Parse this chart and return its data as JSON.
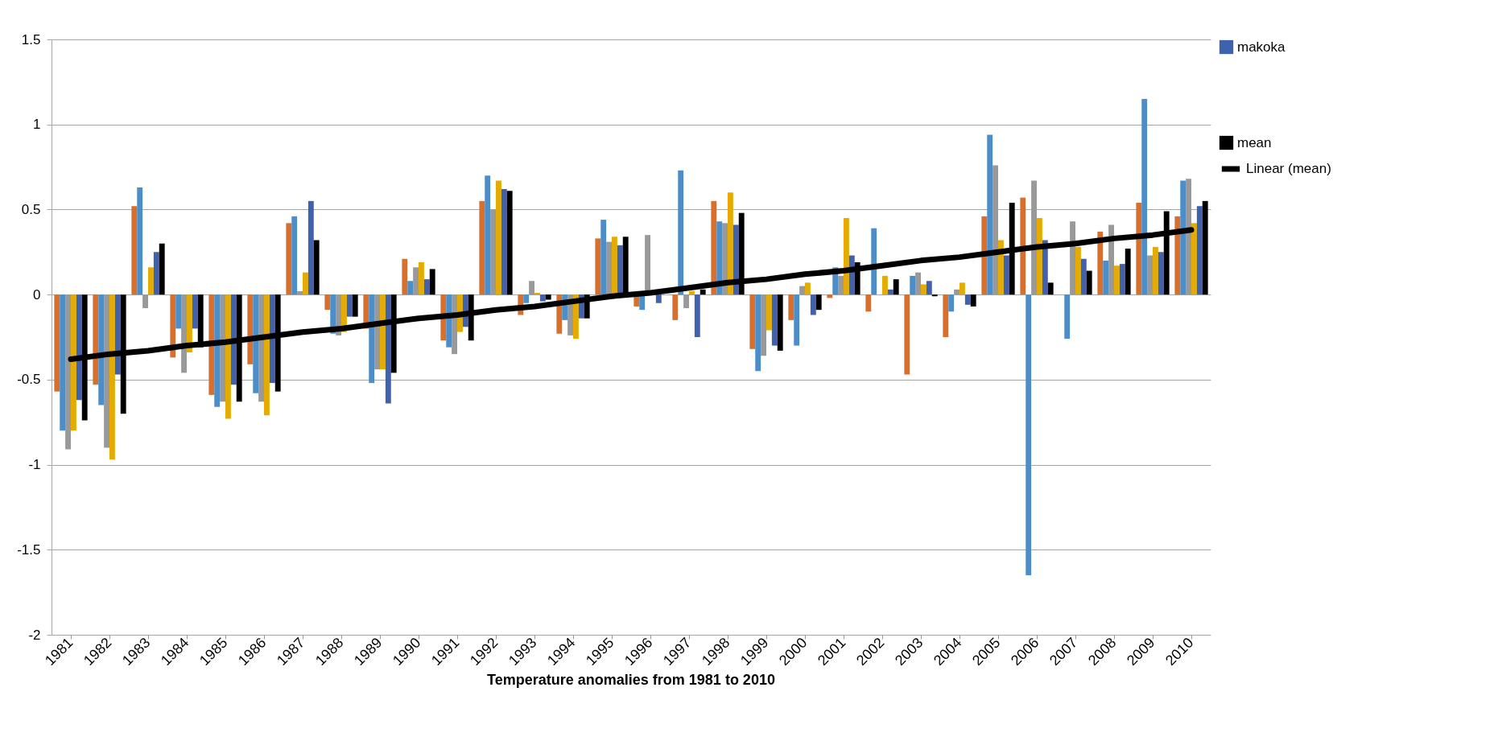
{
  "chart_data": {
    "type": "bar",
    "xlabel": "Temperature anomalies from 1981 to 2010",
    "categories": [
      "1981",
      "1982",
      "1983",
      "1984",
      "1985",
      "1986",
      "1987",
      "1988",
      "1989",
      "1990",
      "1991",
      "1992",
      "1993",
      "1994",
      "1995",
      "1996",
      "1997",
      "1998",
      "1999",
      "2000",
      "2001",
      "2002",
      "2003",
      "2004",
      "2005",
      "2006",
      "2007",
      "2008",
      "2009",
      "2010"
    ],
    "series": [
      {
        "color": "#d8702c",
        "values": [
          -0.57,
          -0.53,
          0.52,
          -0.37,
          -0.59,
          -0.41,
          0.42,
          -0.09,
          -0.2,
          0.21,
          -0.27,
          0.55,
          -0.12,
          -0.23,
          0.33,
          -0.07,
          -0.15,
          0.55,
          -0.32,
          -0.15,
          -0.02,
          -0.1,
          -0.47,
          -0.25,
          0.46,
          0.57,
          null,
          0.37,
          0.54,
          0.46
        ]
      },
      {
        "color": "#4e8ec8",
        "values": [
          -0.8,
          -0.65,
          0.63,
          -0.2,
          -0.66,
          -0.58,
          0.46,
          -0.23,
          -0.52,
          0.08,
          -0.31,
          0.7,
          -0.05,
          -0.15,
          0.44,
          -0.09,
          0.73,
          0.43,
          -0.45,
          -0.3,
          0.16,
          0.39,
          0.11,
          -0.1,
          0.94,
          -1.65,
          -0.26,
          0.2,
          1.15,
          0.67
        ]
      },
      {
        "color": "#999999",
        "values": [
          -0.91,
          -0.9,
          -0.08,
          -0.46,
          -0.63,
          -0.63,
          0.02,
          -0.24,
          -0.44,
          0.16,
          -0.35,
          0.5,
          0.08,
          -0.24,
          0.31,
          0.35,
          -0.08,
          0.42,
          -0.36,
          0.05,
          0.11,
          0.0,
          0.13,
          0.03,
          0.76,
          0.67,
          0.43,
          0.41,
          0.23,
          0.68
        ]
      },
      {
        "color": "#e5ab00",
        "values": [
          -0.8,
          -0.97,
          0.16,
          -0.34,
          -0.73,
          -0.71,
          0.13,
          -0.22,
          -0.44,
          0.19,
          -0.22,
          0.67,
          0.01,
          -0.26,
          0.34,
          0.0,
          0.02,
          0.6,
          -0.21,
          0.07,
          0.45,
          0.11,
          0.06,
          0.07,
          0.32,
          0.45,
          0.28,
          0.17,
          0.28,
          0.42
        ]
      },
      {
        "name": "makoka",
        "color": "#3f62ad",
        "values": [
          -0.62,
          -0.47,
          0.25,
          -0.2,
          -0.53,
          -0.52,
          0.55,
          -0.13,
          -0.64,
          0.09,
          -0.19,
          0.62,
          -0.04,
          -0.14,
          0.29,
          -0.05,
          -0.25,
          0.41,
          -0.3,
          -0.12,
          0.23,
          0.03,
          0.08,
          -0.06,
          0.23,
          0.32,
          0.21,
          0.18,
          0.25,
          0.52
        ]
      },
      {
        "name": "mean",
        "color": "#000000",
        "values": [
          -0.74,
          -0.7,
          0.3,
          -0.31,
          -0.63,
          -0.57,
          0.32,
          -0.13,
          -0.46,
          0.15,
          -0.27,
          0.61,
          -0.03,
          -0.14,
          0.34,
          0.0,
          0.03,
          0.48,
          -0.33,
          -0.09,
          0.19,
          0.09,
          -0.01,
          -0.07,
          0.54,
          0.07,
          0.14,
          0.27,
          0.49,
          0.55
        ]
      },
      {
        "name": "Linear (mean)",
        "type": "line",
        "color": "#000000",
        "values": [
          -0.38,
          -0.35,
          -0.33,
          -0.3,
          -0.28,
          -0.25,
          -0.22,
          -0.2,
          -0.17,
          -0.14,
          -0.12,
          -0.09,
          -0.07,
          -0.04,
          -0.01,
          0.01,
          0.04,
          0.07,
          0.09,
          0.12,
          0.14,
          0.17,
          0.2,
          0.22,
          0.25,
          0.28,
          0.3,
          0.33,
          0.35,
          0.38
        ]
      }
    ],
    "ylim": [
      -2,
      1.5
    ],
    "yticks": [
      -2,
      -1.5,
      -1,
      -0.5,
      0,
      0.5,
      1,
      1.5
    ],
    "grid": "y",
    "legend": "right"
  }
}
